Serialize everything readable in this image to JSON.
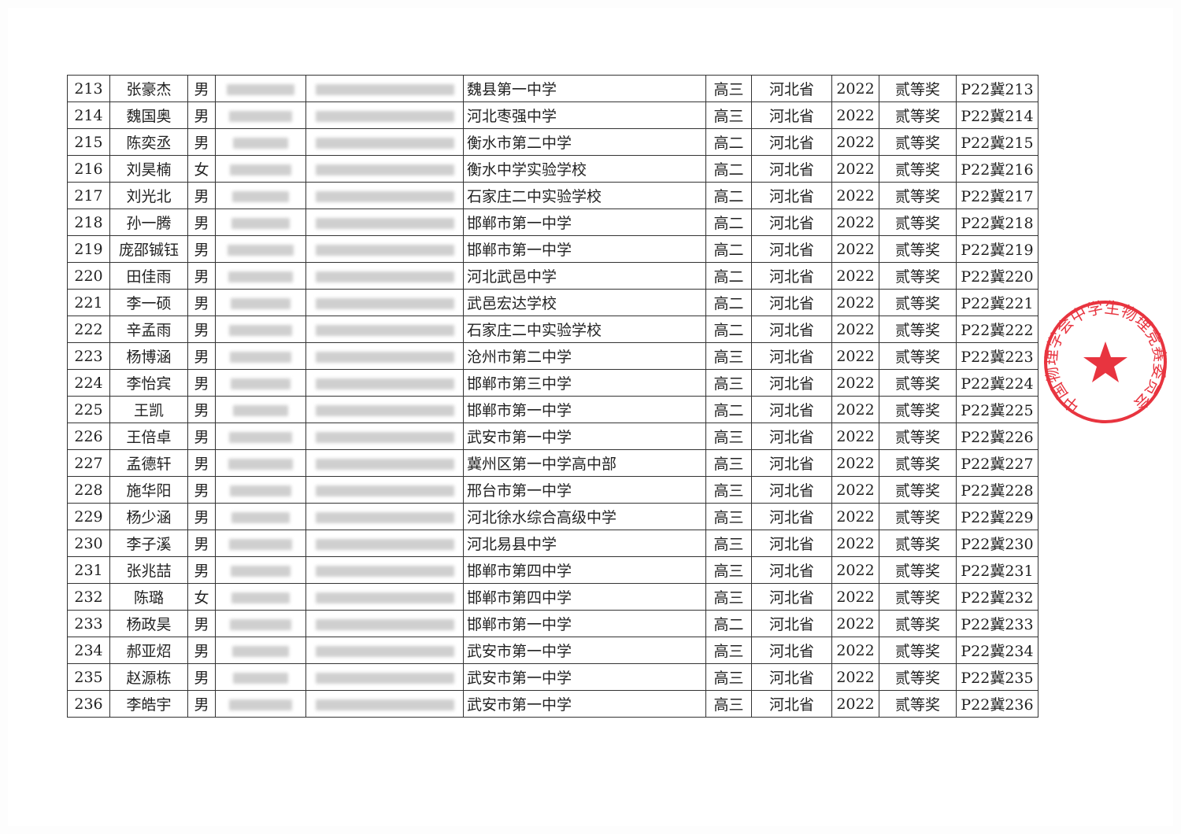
{
  "stamp": {
    "text": "中国物理学会中学生物理竞赛委员会",
    "color": "#e8343f"
  },
  "rows": [
    {
      "no": "213",
      "name": "张豪杰",
      "gender": "男",
      "school": "魏县第一中学",
      "grade": "高三",
      "province": "河北省",
      "year": "2022",
      "award": "贰等奖",
      "cert": "P22冀213"
    },
    {
      "no": "214",
      "name": "魏国奥",
      "gender": "男",
      "school": "河北枣强中学",
      "grade": "高三",
      "province": "河北省",
      "year": "2022",
      "award": "贰等奖",
      "cert": "P22冀214"
    },
    {
      "no": "215",
      "name": "陈奕丞",
      "gender": "男",
      "school": "衡水市第二中学",
      "grade": "高二",
      "province": "河北省",
      "year": "2022",
      "award": "贰等奖",
      "cert": "P22冀215"
    },
    {
      "no": "216",
      "name": "刘昊楠",
      "gender": "女",
      "school": "衡水中学实验学校",
      "grade": "高二",
      "province": "河北省",
      "year": "2022",
      "award": "贰等奖",
      "cert": "P22冀216"
    },
    {
      "no": "217",
      "name": "刘光北",
      "gender": "男",
      "school": "石家庄二中实验学校",
      "grade": "高二",
      "province": "河北省",
      "year": "2022",
      "award": "贰等奖",
      "cert": "P22冀217"
    },
    {
      "no": "218",
      "name": "孙一腾",
      "gender": "男",
      "school": "邯郸市第一中学",
      "grade": "高二",
      "province": "河北省",
      "year": "2022",
      "award": "贰等奖",
      "cert": "P22冀218"
    },
    {
      "no": "219",
      "name": "庞邵铖钰",
      "gender": "男",
      "school": "邯郸市第一中学",
      "grade": "高二",
      "province": "河北省",
      "year": "2022",
      "award": "贰等奖",
      "cert": "P22冀219"
    },
    {
      "no": "220",
      "name": "田佳雨",
      "gender": "男",
      "school": "河北武邑中学",
      "grade": "高二",
      "province": "河北省",
      "year": "2022",
      "award": "贰等奖",
      "cert": "P22冀220"
    },
    {
      "no": "221",
      "name": "李一硕",
      "gender": "男",
      "school": "武邑宏达学校",
      "grade": "高二",
      "province": "河北省",
      "year": "2022",
      "award": "贰等奖",
      "cert": "P22冀221"
    },
    {
      "no": "222",
      "name": "辛孟雨",
      "gender": "男",
      "school": "石家庄二中实验学校",
      "grade": "高二",
      "province": "河北省",
      "year": "2022",
      "award": "贰等奖",
      "cert": "P22冀222"
    },
    {
      "no": "223",
      "name": "杨博涵",
      "gender": "男",
      "school": "沧州市第二中学",
      "grade": "高三",
      "province": "河北省",
      "year": "2022",
      "award": "贰等奖",
      "cert": "P22冀223"
    },
    {
      "no": "224",
      "name": "李怡宾",
      "gender": "男",
      "school": "邯郸市第三中学",
      "grade": "高三",
      "province": "河北省",
      "year": "2022",
      "award": "贰等奖",
      "cert": "P22冀224"
    },
    {
      "no": "225",
      "name": "王凯",
      "gender": "男",
      "school": "邯郸市第一中学",
      "grade": "高二",
      "province": "河北省",
      "year": "2022",
      "award": "贰等奖",
      "cert": "P22冀225"
    },
    {
      "no": "226",
      "name": "王倍卓",
      "gender": "男",
      "school": "武安市第一中学",
      "grade": "高三",
      "province": "河北省",
      "year": "2022",
      "award": "贰等奖",
      "cert": "P22冀226"
    },
    {
      "no": "227",
      "name": "孟德轩",
      "gender": "男",
      "school": "冀州区第一中学高中部",
      "grade": "高三",
      "province": "河北省",
      "year": "2022",
      "award": "贰等奖",
      "cert": "P22冀227"
    },
    {
      "no": "228",
      "name": "施华阳",
      "gender": "男",
      "school": "邢台市第一中学",
      "grade": "高三",
      "province": "河北省",
      "year": "2022",
      "award": "贰等奖",
      "cert": "P22冀228"
    },
    {
      "no": "229",
      "name": "杨少涵",
      "gender": "男",
      "school": "河北徐水综合高级中学",
      "grade": "高三",
      "province": "河北省",
      "year": "2022",
      "award": "贰等奖",
      "cert": "P22冀229"
    },
    {
      "no": "230",
      "name": "李子溪",
      "gender": "男",
      "school": "河北易县中学",
      "grade": "高三",
      "province": "河北省",
      "year": "2022",
      "award": "贰等奖",
      "cert": "P22冀230"
    },
    {
      "no": "231",
      "name": "张兆喆",
      "gender": "男",
      "school": "邯郸市第四中学",
      "grade": "高三",
      "province": "河北省",
      "year": "2022",
      "award": "贰等奖",
      "cert": "P22冀231"
    },
    {
      "no": "232",
      "name": "陈璐",
      "gender": "女",
      "school": "邯郸市第四中学",
      "grade": "高三",
      "province": "河北省",
      "year": "2022",
      "award": "贰等奖",
      "cert": "P22冀232"
    },
    {
      "no": "233",
      "name": "杨政昊",
      "gender": "男",
      "school": "邯郸市第一中学",
      "grade": "高二",
      "province": "河北省",
      "year": "2022",
      "award": "贰等奖",
      "cert": "P22冀233"
    },
    {
      "no": "234",
      "name": "郝亚炤",
      "gender": "男",
      "school": "武安市第一中学",
      "grade": "高三",
      "province": "河北省",
      "year": "2022",
      "award": "贰等奖",
      "cert": "P22冀234"
    },
    {
      "no": "235",
      "name": "赵源栋",
      "gender": "男",
      "school": "武安市第一中学",
      "grade": "高三",
      "province": "河北省",
      "year": "2022",
      "award": "贰等奖",
      "cert": "P22冀235"
    },
    {
      "no": "236",
      "name": "李皓宇",
      "gender": "男",
      "school": "武安市第一中学",
      "grade": "高三",
      "province": "河北省",
      "year": "2022",
      "award": "贰等奖",
      "cert": "P22冀236"
    }
  ]
}
